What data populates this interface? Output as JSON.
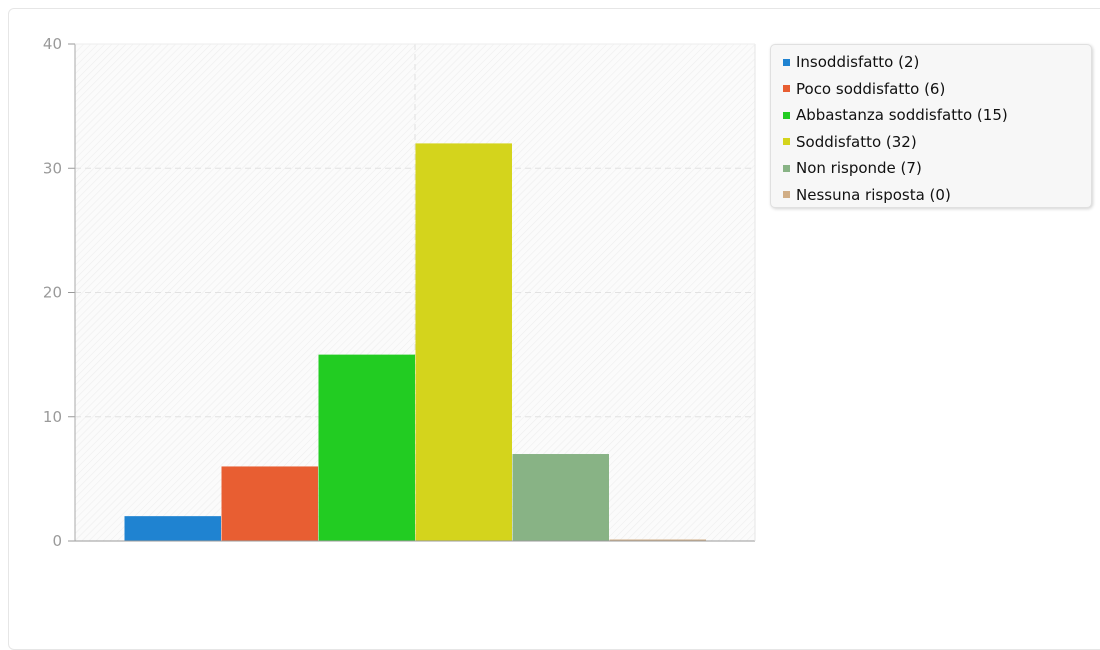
{
  "chart_data": {
    "type": "bar",
    "ylim": [
      0,
      40
    ],
    "yticks": [
      0,
      10,
      20,
      30,
      40
    ],
    "grid": true,
    "legend_position": "top-right",
    "series": [
      {
        "name": "Insoddisfatto (2)",
        "value": 2,
        "color": "#1f83d1"
      },
      {
        "name": "Poco soddisfatto (6)",
        "value": 6,
        "color": "#e85e32"
      },
      {
        "name": "Abbastanza soddisfatto (15)",
        "value": 15,
        "color": "#22cc22"
      },
      {
        "name": "Soddisfatto (32)",
        "value": 32,
        "color": "#d4d41c"
      },
      {
        "name": "Non risponde (7)",
        "value": 7,
        "color": "#88b385"
      },
      {
        "name": "Nessuna risposta (0)",
        "value": 0,
        "color": "#d1ae86"
      }
    ]
  }
}
